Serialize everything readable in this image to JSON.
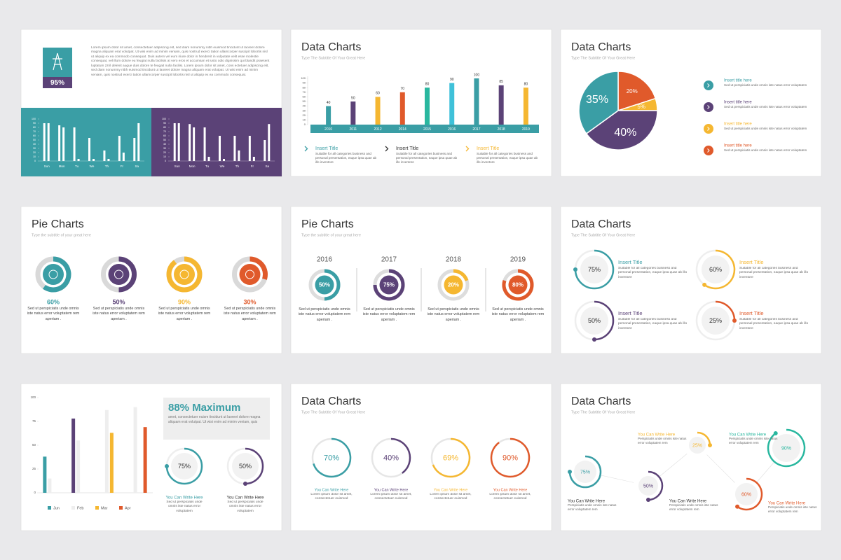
{
  "slides": [
    {
      "stat_label": "95%",
      "color": "#3a9ea5",
      "label_color": "#5b4277",
      "paragraph": "Lorem ipsum dolor sit amet, consectetuer adipiscing elit, sed diam nonummy nibh euismod tincidunt ut laoreet dolore magna aliquam erat volutpat. Ut wisi enim ad minim veniam, quis nostrud exerci tation ullamcorper suscipit lobortis nisl ut aliquip ex ea commodo consequat. Duis autem vel eum iriure dolor in hendrerit in vulputate velit esse molestie consequat, vel illum dolore eu feugiat nulla facilisis at vero eros et accumsan et iusto odio dignissim qui blandit praesent luptatum zzril delenit augue duis dolore te feugait nulla facilisi. Lorem ipsum dolor sit amet, cons ectetuer adipiscing elit, sed diam nonummy nibh euismod tincidunt ut laoreet dolore magna aliquam erat volutpat. Ut wisi enim ad minim veniam, quis nostrud exerci tation ullamcorper suscipit lobortis nisl ut aliquip ex ea commodo consequat.",
      "charts": [
        {
          "type": "bar",
          "background": "#3a9ea5",
          "categories": [
            "Sun",
            "Mon",
            "Tu",
            "We",
            "Th",
            "Fr",
            "Sa"
          ],
          "ylim": [
            0,
            100
          ],
          "yticks": [
            0,
            10,
            20,
            30,
            40,
            50,
            60,
            70,
            80,
            90,
            100
          ],
          "series": [
            {
              "color": "#ffffff",
              "values": [
                90,
                85,
                80,
                55,
                25,
                60,
                55
              ]
            },
            {
              "color": "#ffffff",
              "values": [
                90,
                80,
                5,
                5,
                5,
                20,
                90
              ]
            }
          ]
        },
        {
          "type": "bar",
          "background": "#5b4277",
          "categories": [
            "Sun",
            "Mon",
            "Tu",
            "We",
            "Th",
            "Fr",
            "Sa"
          ],
          "ylim": [
            0,
            100
          ],
          "yticks": [
            0,
            10,
            20,
            30,
            40,
            50,
            60,
            70,
            80,
            90,
            100
          ],
          "series": [
            {
              "color": "#ffffff",
              "values": [
                90,
                88,
                80,
                60,
                60,
                60,
                50
              ]
            },
            {
              "color": "#ffffff",
              "values": [
                90,
                80,
                10,
                5,
                25,
                10,
                88
              ]
            }
          ]
        }
      ]
    },
    {
      "title": "Data Charts",
      "subtitle": "Type The Subtitle Of Your Great Here",
      "chart": {
        "type": "bar",
        "categories": [
          "2010",
          "2011",
          "2012",
          "2014",
          "2015",
          "2016",
          "2017",
          "2018",
          "2019"
        ],
        "values": [
          40,
          50,
          60,
          70,
          80,
          90,
          100,
          85,
          80
        ],
        "colors": [
          "#3a9ea5",
          "#5b4277",
          "#f5b731",
          "#e05a2b",
          "#29b79f",
          "#3fc1d9",
          "#3a9ea5",
          "#5b4277",
          "#f5b731"
        ],
        "ylim": [
          0,
          100
        ],
        "yticks": [
          0,
          10,
          20,
          30,
          40,
          50,
          60,
          70,
          80,
          90,
          100
        ],
        "band_color": "#3a9ea5"
      },
      "items": [
        {
          "title": "Insert Title",
          "color": "#3a9ea5",
          "text": "Suitable for all categories business and personal presentation, eaque ipsa quae ab illo inventore"
        },
        {
          "title": "Insert Title",
          "color": "#333333",
          "text": "Suitable for all categories business and personal presentation, eaque ipsa quae ab illo inventore"
        },
        {
          "title": "Insert Title",
          "color": "#f5b731",
          "text": "Suitable for all categories business and personal presentation, eaque ipsa quae ab illo inventore"
        }
      ]
    },
    {
      "title": "Data Charts",
      "subtitle": "Type The Subtitle Of Your Great Here",
      "chart": {
        "type": "pie",
        "values": [
          20,
          5,
          40,
          35
        ],
        "value_labels": [
          "20%",
          "5%",
          "40%",
          "35%"
        ],
        "colors": [
          "#e05a2b",
          "#f5b731",
          "#5b4277",
          "#3a9ea5"
        ]
      },
      "legend": [
        {
          "title": "Insert title here",
          "color": "#3a9ea5",
          "text": "Sed ut perspiciatis unde omnis iste natus error voluptatem"
        },
        {
          "title": "Insert title here",
          "color": "#5b4277",
          "text": "Sed ut perspiciatis unde omnis iste natus error voluptatem"
        },
        {
          "title": "Insert title here",
          "color": "#f5b731",
          "text": "Sed ut perspiciatis unde omnis iste natus error voluptatem"
        },
        {
          "title": "Insert title here",
          "color": "#e05a2b",
          "text": "Sed ut perspiciatis unde omnis iste natus error voluptatem"
        }
      ]
    },
    {
      "title": "Pie Charts",
      "subtitle": "Type the subtitle of your great here",
      "items": [
        {
          "value": 60,
          "label": "60%",
          "color": "#3a9ea5",
          "text": "Sed ut perspiciatis unde omnis iste natus error voluptatem rem aperiam ."
        },
        {
          "value": 50,
          "label": "50%",
          "color": "#5b4277",
          "text": "Sed ut perspiciatis unde omnis iste natus error voluptatem rem aperiam ."
        },
        {
          "value": 90,
          "label": "90%",
          "color": "#f5b731",
          "text": "Sed ut perspiciatis unde omnis iste natus error voluptatem rem aperiam ."
        },
        {
          "value": 30,
          "label": "30%",
          "color": "#e05a2b",
          "text": "Sed ut perspiciatis unde omnis iste natus error voluptatem rem aperiam ."
        }
      ]
    },
    {
      "title": "Pie Charts",
      "subtitle": "Type the subtitle of your great here",
      "items": [
        {
          "year": "2016",
          "value": 50,
          "label": "50%",
          "color": "#3a9ea5",
          "text": "Sed ut perspiciatis unde omnis iste natus error voluptatem rem aperiam ."
        },
        {
          "year": "2017",
          "value": 75,
          "label": "75%",
          "color": "#5b4277",
          "text": "Sed ut perspiciatis unde omnis iste natus error voluptatem rem aperiam ."
        },
        {
          "year": "2018",
          "value": 20,
          "label": "20%",
          "color": "#f5b731",
          "text": "Sed ut perspiciatis unde omnis iste natus error voluptatem rem aperiam ."
        },
        {
          "year": "2019",
          "value": 80,
          "label": "80%",
          "color": "#e05a2b",
          "text": "Sed ut perspiciatis unde omnis iste natus error voluptatem rem aperiam ."
        }
      ]
    },
    {
      "title": "Data Charts",
      "subtitle": "Type The Subtitle Of Your Great Here",
      "items": [
        {
          "value": 75,
          "label": "75%",
          "color": "#3a9ea5",
          "title": "Insert Title",
          "text": "Suitable for all categories business and personal presentation, eaque ipsa quae ab illo inventore"
        },
        {
          "value": 60,
          "label": "60%",
          "color": "#f5b731",
          "title": "Insert Title",
          "text": "Suitable for all categories business and personal presentation, eaque ipsa quae ab illo inventore"
        },
        {
          "value": 50,
          "label": "50%",
          "color": "#5b4277",
          "title": "Insert Title",
          "text": "Suitable for all categories business and personal presentation, eaque ipsa quae ab illo inventore"
        },
        {
          "value": 25,
          "label": "25%",
          "color": "#e05a2b",
          "title": "Insert Title",
          "text": "Suitable for all categories business and personal presentation, eaque ipsa quae ab illo inventore"
        }
      ]
    },
    {
      "chart": {
        "type": "bar",
        "ylim": [
          0,
          100
        ],
        "yticks": [
          0,
          25,
          50,
          75,
          100
        ],
        "series": [
          {
            "name": "Jun",
            "color": "#3a9ea5",
            "colors": [
              "#3a9ea5",
              "#5b4277",
              "#3a9ea5",
              "#3a9ea5"
            ],
            "values": [
              38,
              78,
              null,
              null
            ]
          },
          {
            "name": "Feb",
            "color": "#eeeeee",
            "colors": [
              "#eeeeee",
              "#eeeeee",
              "#eeeeee",
              "#eeeeee"
            ],
            "values": [
              15,
              55,
              87,
              90
            ]
          },
          {
            "name": "Mar",
            "color": "#f5b731",
            "colors": [
              "#f5b731",
              "#f5b731",
              "#f5b731",
              "#f5b731"
            ],
            "values": [
              null,
              null,
              63,
              null
            ]
          },
          {
            "name": "Apr",
            "color": "#e05a2b",
            "colors": [
              "#e05a2b",
              "#e05a2b",
              "#e05a2b",
              "#e05a2b"
            ],
            "values": [
              null,
              null,
              null,
              69
            ]
          }
        ]
      },
      "headline": "88% Maximum",
      "headline_color": "#3a9ea5",
      "paragraph": "amet, consectetuer euism tincidunt ut laoreet dolore magna aliquam erat volutpat. Ut wisi enim ad minim veniam, quis",
      "items": [
        {
          "value": 75,
          "label": "75%",
          "color": "#3a9ea5",
          "title": "You Can Write Here",
          "title_color": "#3a9ea5",
          "text": "Sed ut perspiciatis unde omnis iste natus error voluptatem"
        },
        {
          "value": 50,
          "label": "50%",
          "color": "#5b4277",
          "title": "You Can Write Here",
          "title_color": "#333333",
          "text": "Sed ut perspiciatis unde omnis iste natus error voluptatem"
        }
      ]
    },
    {
      "title": "Data Charts",
      "subtitle": "Type The Subtitle Of Your Great Here",
      "items": [
        {
          "value": 70,
          "label": "70%",
          "color": "#3a9ea5",
          "title": "You Can Write Here",
          "text": "Lorem ipsum dolor sit amet, consectetuer euismod"
        },
        {
          "value": 40,
          "label": "40%",
          "color": "#5b4277",
          "title": "You Can Write Here",
          "text": "Lorem ipsum dolor sit amet, consectetuer euismod"
        },
        {
          "value": 69,
          "label": "69%",
          "color": "#f5b731",
          "title": "You Can Write Here",
          "text": "Lorem ipsum dolor sit amet, consectetuer euismod"
        },
        {
          "value": 90,
          "label": "90%",
          "color": "#e05a2b",
          "title": "You Can Write Here",
          "text": "Lorem ipsum dolor sit amet, consectetuer euismod"
        }
      ]
    },
    {
      "title": "Data Charts",
      "subtitle": "Type The Subtitle Of Your Great Here",
      "items": [
        {
          "value": 75,
          "label": "75%",
          "color": "#3a9ea5",
          "title": "You Can Write Here",
          "title_color": "#333333",
          "text": "Perspiciatis unde omnis iste natus error voluptatem rem"
        },
        {
          "value": 50,
          "label": "50%",
          "color": "#5b4277",
          "title": "You Can Write Here",
          "title_color": "#333333",
          "text": "Perspiciatis unde omnis iste natus error voluptatem rem"
        },
        {
          "value": 25,
          "label": "25%",
          "color": "#f5b731",
          "title": "You Can Write Here",
          "title_color": "#f5b731",
          "text": "Perspiciatis unde omnis iste natus error voluptatem rem"
        },
        {
          "value": 60,
          "label": "60%",
          "color": "#e05a2b",
          "title": "You Can Write Here",
          "title_color": "#e05a2b",
          "text": "Perspiciatis unde omnis iste natus error voluptatem rem"
        },
        {
          "value": 90,
          "label": "90%",
          "color": "#29b79f",
          "title": "You Can Write Here",
          "title_color": "#29b79f",
          "text": "Perspiciatis unde omnis iste natus error voluptatem rem"
        }
      ]
    }
  ]
}
